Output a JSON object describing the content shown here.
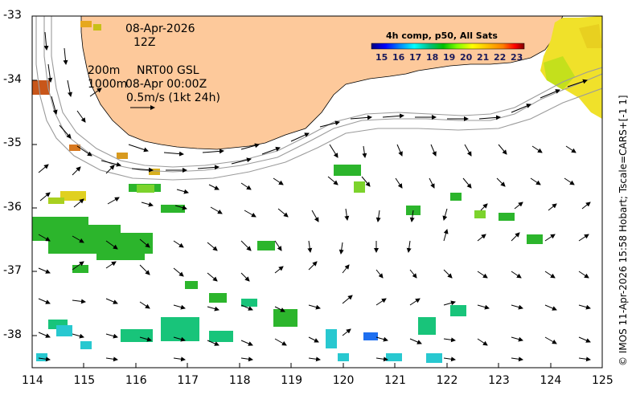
{
  "map": {
    "title_colorbar": "4h comp, p50, All Sats",
    "date": "08-Apr-2026",
    "hour": "12Z",
    "depth1": "200m",
    "depth2": "1000m",
    "product": "NRT00 GSL",
    "product_time": "08-Apr 00:00Z",
    "scale_note": "0.5m/s (1kt 24h)",
    "credit": "© IMOS 11-Apr-2026 15:58 Hobart; Tscale=CARS+[-1 1]",
    "x_ticks": [
      "114",
      "115",
      "116",
      "117",
      "118",
      "119",
      "120",
      "121",
      "122",
      "123",
      "124",
      "125"
    ],
    "y_ticks": [
      "-33",
      "-34",
      "-35",
      "-36",
      "-37",
      "-38"
    ],
    "colorbar_ticks": [
      "15",
      "16",
      "17",
      "18",
      "19",
      "20",
      "21",
      "22",
      "23"
    ],
    "colorbar_colors": [
      "#00007f",
      "#0000ff",
      "#007fff",
      "#00ffff",
      "#00c080",
      "#00c000",
      "#7fff00",
      "#ffff00",
      "#ffbf00",
      "#ff7f00",
      "#ff0000",
      "#7f0000"
    ],
    "land_color": "#fdc99b"
  }
}
